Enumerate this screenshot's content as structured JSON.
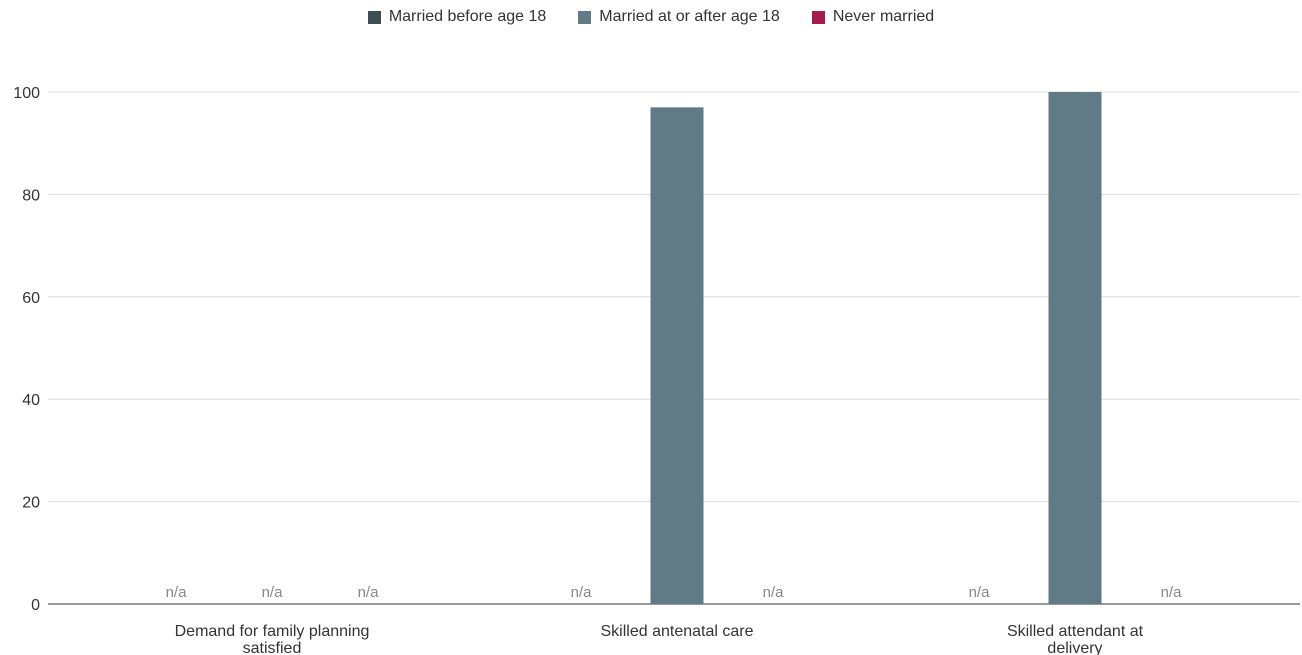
{
  "chart_data": {
    "type": "bar",
    "title": "",
    "xlabel": "",
    "ylabel": "",
    "ylim": [
      0,
      100
    ],
    "yticks": [
      0,
      20,
      40,
      60,
      80,
      100
    ],
    "grid": true,
    "legend_position": "top-center",
    "categories": [
      "Demand for family planning satisfied",
      "Skilled antenatal care",
      "Skilled attendant at delivery"
    ],
    "missing_label": "n/a",
    "series": [
      {
        "name": "Married before age 18",
        "color": "#3d4f54",
        "values": [
          null,
          null,
          null
        ]
      },
      {
        "name": "Married at or after age 18",
        "color": "#607b86",
        "values": [
          null,
          97,
          100
        ]
      },
      {
        "name": "Never married",
        "color": "#a31c4d",
        "values": [
          null,
          null,
          null
        ]
      }
    ]
  }
}
